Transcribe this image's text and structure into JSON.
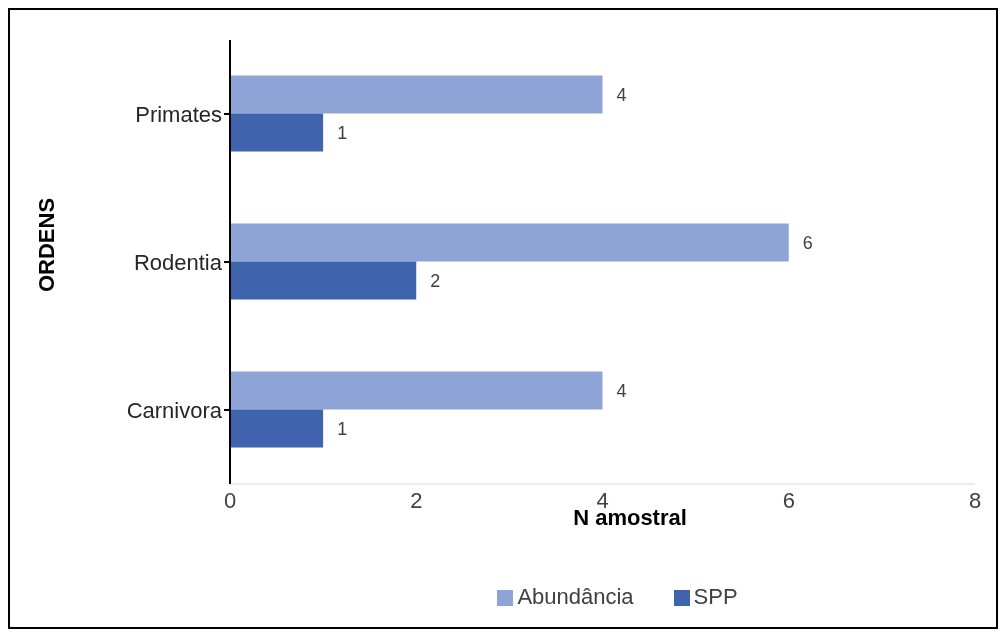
{
  "chart_data": {
    "type": "bar",
    "orientation": "horizontal",
    "xlabel": "N amostral",
    "ylabel": "ORDENS",
    "categories": [
      "Primates",
      "Rodentia",
      "Carnivora"
    ],
    "series": [
      {
        "name": "Abundância",
        "color": "#8fa4d6",
        "values": [
          4,
          6,
          4
        ]
      },
      {
        "name": "SPP",
        "color": "#3f63ad",
        "values": [
          1,
          2,
          1
        ]
      }
    ],
    "xlim": [
      0,
      8
    ],
    "xticks": [
      0,
      2,
      4,
      6,
      8
    ],
    "grid": false,
    "legend": "bottom",
    "data_labels": true
  }
}
